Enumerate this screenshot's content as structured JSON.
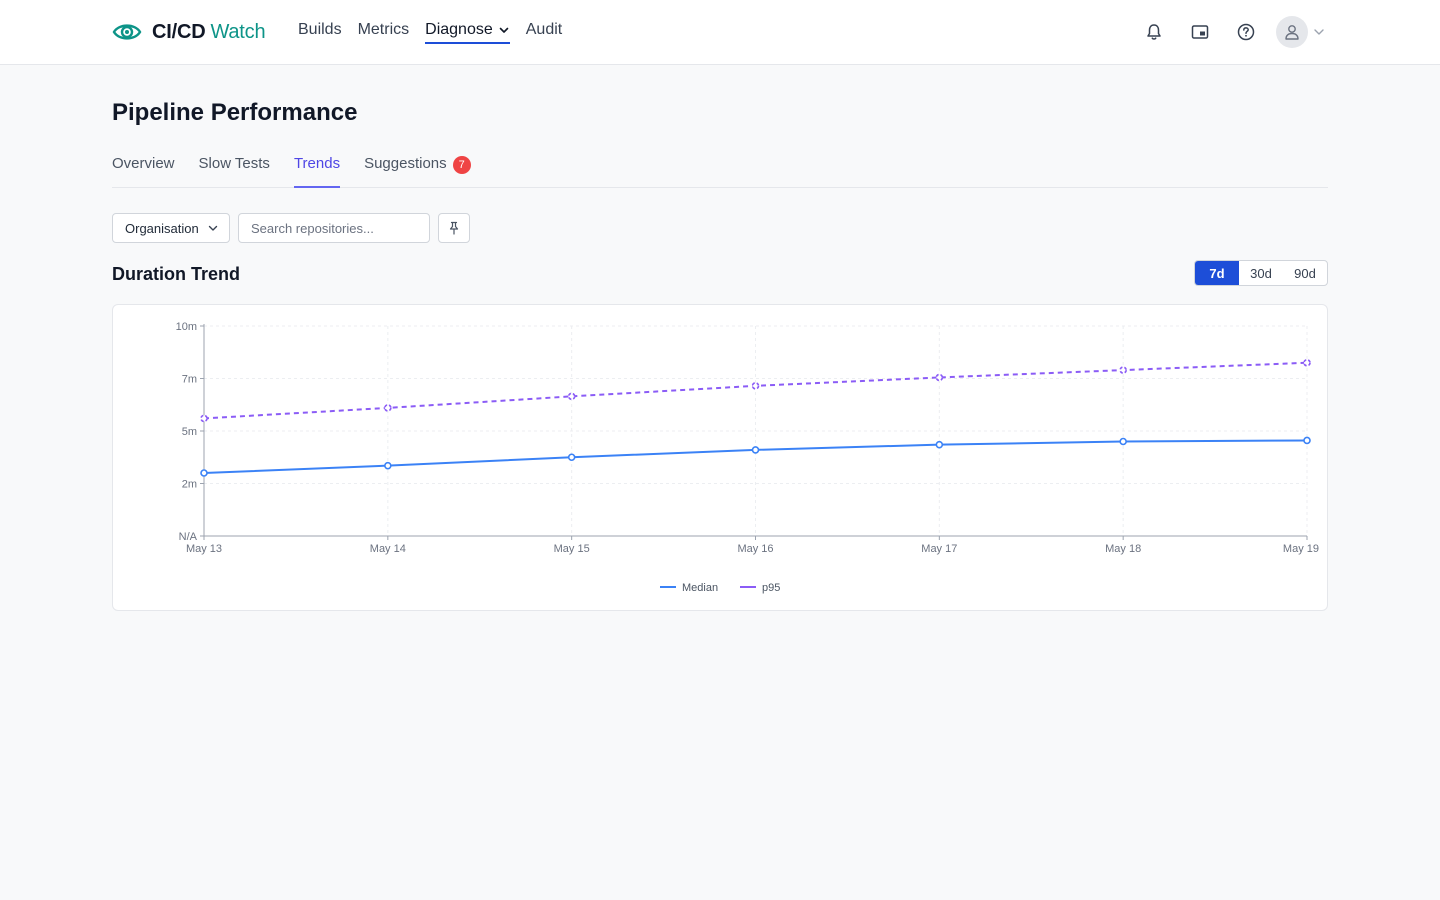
{
  "app": {
    "name_bold": "CI/CD",
    "name_light": "Watch"
  },
  "nav": [
    {
      "label": "Builds",
      "active": false
    },
    {
      "label": "Metrics",
      "active": false
    },
    {
      "label": "Diagnose",
      "active": true,
      "has_dropdown": true
    },
    {
      "label": "Audit",
      "active": false
    }
  ],
  "header_icons": [
    "bell-icon",
    "picture-in-picture-icon",
    "help-circle-icon",
    "user-icon"
  ],
  "page": {
    "title": "Pipeline Performance"
  },
  "tabs": [
    {
      "label": "Overview",
      "active": false
    },
    {
      "label": "Slow Tests",
      "active": false
    },
    {
      "label": "Trends",
      "active": true
    },
    {
      "label": "Suggestions",
      "active": false,
      "badge": "7"
    }
  ],
  "filters": {
    "org_select": "Organisation",
    "search_placeholder": "Search repositories..."
  },
  "section": {
    "title": "Duration Trend"
  },
  "range": {
    "options": [
      "7d",
      "30d",
      "90d"
    ],
    "selected": "7d"
  },
  "colors": {
    "accent": "#1d4ed8",
    "median": "#3b82f6",
    "p95": "#8b5cf6",
    "badge": "#ef4444",
    "brand": "#0d9488"
  },
  "chart_data": {
    "type": "line",
    "title": "",
    "x": [
      "May 13",
      "May 14",
      "May 15",
      "May 16",
      "May 17",
      "May 18",
      "May 19"
    ],
    "y_ticks": [
      "N/A",
      "2m",
      "5m",
      "7m",
      "10m"
    ],
    "ylim": [
      0,
      10
    ],
    "grid": true,
    "legend_position": "bottom-center",
    "series": [
      {
        "name": "Median",
        "values": [
          3.0,
          3.35,
          3.75,
          4.1,
          4.35,
          4.5,
          4.55
        ],
        "style": "solid"
      },
      {
        "name": "p95",
        "values": [
          5.6,
          6.1,
          6.65,
          7.15,
          7.55,
          7.9,
          8.25
        ],
        "style": "dashed"
      }
    ]
  }
}
